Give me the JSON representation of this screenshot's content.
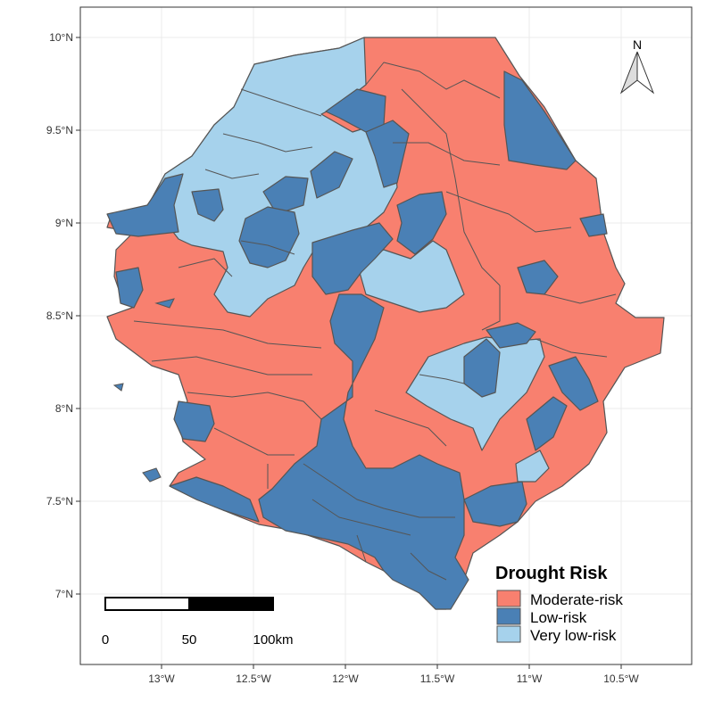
{
  "map": {
    "y_ticks": [
      "10°N",
      "9.5°N",
      "9°N",
      "8.5°N",
      "8°N",
      "7.5°N",
      "7°N"
    ],
    "x_ticks": [
      "13°W",
      "12.5°W",
      "12°W",
      "11.5°W",
      "11°W",
      "10.5°W"
    ],
    "north_arrow_label": "N",
    "scale_bar": {
      "labels": [
        "0",
        "50",
        "100km"
      ]
    },
    "legend": {
      "title": "Drought Risk",
      "items": [
        {
          "label": "Moderate-risk",
          "color": "#f8806f"
        },
        {
          "label": "Low-risk",
          "color": "#4a80b5"
        },
        {
          "label": "Very low-risk",
          "color": "#a6d2ec"
        }
      ]
    },
    "colors": {
      "moderate": "#f8806f",
      "low": "#4a80b5",
      "very_low": "#a6d2ec",
      "border": "#555555",
      "grid": "#ebebeb"
    }
  }
}
